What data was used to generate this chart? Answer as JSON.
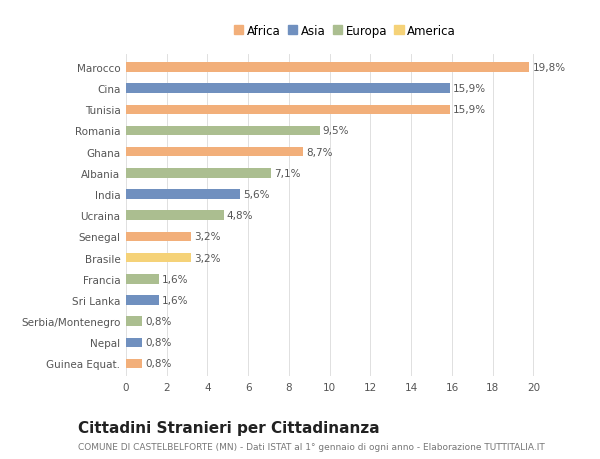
{
  "countries": [
    "Marocco",
    "Cina",
    "Tunisia",
    "Romania",
    "Ghana",
    "Albania",
    "India",
    "Ucraina",
    "Senegal",
    "Brasile",
    "Francia",
    "Sri Lanka",
    "Serbia/Montenegro",
    "Nepal",
    "Guinea Equat."
  ],
  "values": [
    19.8,
    15.9,
    15.9,
    9.5,
    8.7,
    7.1,
    5.6,
    4.8,
    3.2,
    3.2,
    1.6,
    1.6,
    0.8,
    0.8,
    0.8
  ],
  "labels": [
    "19,8%",
    "15,9%",
    "15,9%",
    "9,5%",
    "8,7%",
    "7,1%",
    "5,6%",
    "4,8%",
    "3,2%",
    "3,2%",
    "1,6%",
    "1,6%",
    "0,8%",
    "0,8%",
    "0,8%"
  ],
  "continents": [
    "Africa",
    "Asia",
    "Africa",
    "Europa",
    "Africa",
    "Europa",
    "Asia",
    "Europa",
    "Africa",
    "America",
    "Europa",
    "Asia",
    "Europa",
    "Asia",
    "Africa"
  ],
  "colors": {
    "Africa": "#F2AF7A",
    "Asia": "#7090BF",
    "Europa": "#ABBE90",
    "America": "#F5D278"
  },
  "legend_order": [
    "Africa",
    "Asia",
    "Europa",
    "America"
  ],
  "title": "Cittadini Stranieri per Cittadinanza",
  "subtitle": "COMUNE DI CASTELBELFORTE (MN) - Dati ISTAT al 1° gennaio di ogni anno - Elaborazione TUTTITALIA.IT",
  "xlim": [
    0,
    21.5
  ],
  "xticks": [
    0,
    2,
    4,
    6,
    8,
    10,
    12,
    14,
    16,
    18,
    20
  ],
  "bg_color": "#ffffff",
  "grid_color": "#e0e0e0",
  "bar_height": 0.45,
  "label_fontsize": 7.5,
  "tick_fontsize": 7.5,
  "title_fontsize": 11,
  "subtitle_fontsize": 6.5
}
